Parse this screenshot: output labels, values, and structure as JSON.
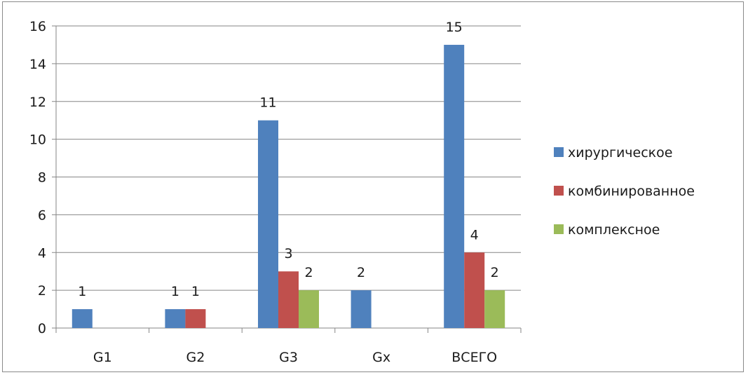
{
  "chart_data": {
    "type": "bar",
    "categories": [
      "G1",
      "G2",
      "G3",
      "Gx",
      "ВСЕГО"
    ],
    "series": [
      {
        "name": "хирургическое",
        "color": "#4f81bd",
        "values": [
          1,
          1,
          11,
          2,
          15
        ]
      },
      {
        "name": "комбинированное",
        "color": "#c0504d",
        "values": [
          null,
          1,
          3,
          null,
          4
        ]
      },
      {
        "name": "комплексное",
        "color": "#9bbb59",
        "values": [
          null,
          null,
          2,
          null,
          2
        ]
      }
    ],
    "ylim": [
      0,
      16
    ],
    "yticks": [
      0,
      2,
      4,
      6,
      8,
      10,
      12,
      14,
      16
    ],
    "grid": true,
    "legend": "right",
    "data_labels": true
  }
}
